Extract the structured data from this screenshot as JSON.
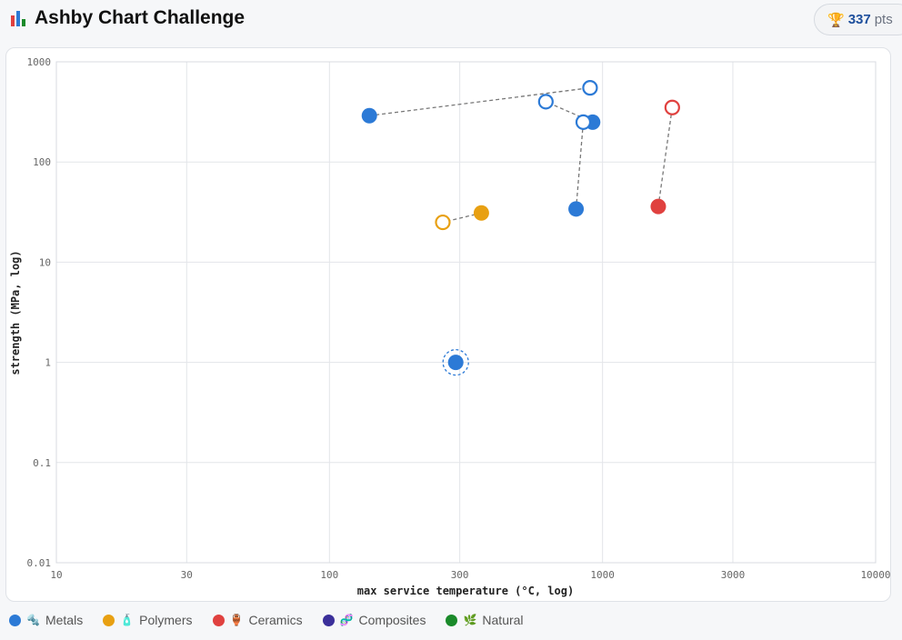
{
  "header": {
    "title": "Ashby Chart Challenge",
    "title_icon": "bar-chart-icon",
    "score": {
      "icon": "trophy-icon",
      "value": "337",
      "unit": "pts"
    }
  },
  "colors": {
    "metals": "#2c7ad6",
    "polymers": "#e8a012",
    "ceramics": "#e0413f",
    "composites": "#3b2f9a",
    "natural": "#1a8a2a"
  },
  "legend": [
    {
      "key": "metals",
      "emoji": "🔩",
      "label": "Metals"
    },
    {
      "key": "polymers",
      "emoji": "🧴",
      "label": "Polymers"
    },
    {
      "key": "ceramics",
      "emoji": "🏺",
      "label": "Ceramics"
    },
    {
      "key": "composites",
      "emoji": "🧬",
      "label": "Composites"
    },
    {
      "key": "natural",
      "emoji": "🌿",
      "label": "Natural"
    }
  ],
  "chart_data": {
    "type": "scatter",
    "xlabel": "max service temperature (°C, log)",
    "ylabel": "strength (MPa, log)",
    "x_scale": "log",
    "y_scale": "log",
    "xlim": [
      10,
      10000
    ],
    "ylim": [
      0.01,
      1000
    ],
    "x_ticks": [
      {
        "value": 10,
        "label": "10"
      },
      {
        "value": 30,
        "label": "30"
      },
      {
        "value": 100,
        "label": "100"
      },
      {
        "value": 300,
        "label": "300"
      },
      {
        "value": 1000,
        "label": "1000"
      },
      {
        "value": 3000,
        "label": "3000"
      },
      {
        "value": 10000,
        "label": "10000"
      }
    ],
    "y_ticks": [
      {
        "value": 0.01,
        "label": "0.01"
      },
      {
        "value": 0.1,
        "label": "0.1"
      },
      {
        "value": 1,
        "label": "1"
      },
      {
        "value": 10,
        "label": "10"
      },
      {
        "value": 100,
        "label": "100"
      },
      {
        "value": 1000,
        "label": "1000"
      }
    ],
    "grid": true,
    "pairs": [
      {
        "category": "metals",
        "placed": [
          140,
          290
        ],
        "target": [
          900,
          550
        ]
      },
      {
        "category": "metals",
        "placed": [
          920,
          250
        ],
        "target": [
          620,
          400
        ]
      },
      {
        "category": "metals",
        "placed": [
          800,
          34
        ],
        "target": [
          850,
          250
        ]
      },
      {
        "category": "polymers",
        "placed": [
          360,
          31
        ],
        "target": [
          260,
          25
        ]
      },
      {
        "category": "ceramics",
        "placed": [
          1600,
          36
        ],
        "target": [
          1800,
          350
        ]
      }
    ],
    "selected": {
      "category": "metals",
      "x": 290,
      "y": 1
    }
  }
}
